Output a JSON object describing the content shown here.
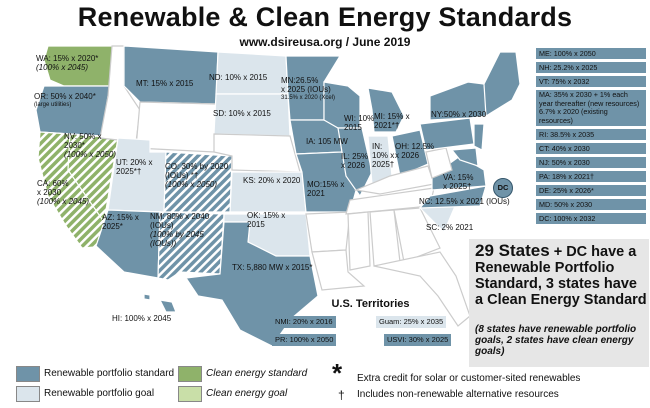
{
  "title": "Renewable & Clean Energy Standards",
  "subtitle": "www.dsireusa.org / June 2019",
  "colors": {
    "rps_standard": "#6f93a8",
    "rps_goal": "#dbe5ec",
    "clean_standard": "#8fb26a",
    "clean_goal": "#c9dfa8",
    "no_policy": "#ffffff"
  },
  "states": {
    "WA": {
      "line1": "WA: 15% x 2020*",
      "line2": "(100% x 2045)"
    },
    "OR": {
      "line1": "OR: 50% x 2040*",
      "line2": "(large utilities)"
    },
    "MT": {
      "line1": "MT: 15% x 2015"
    },
    "ND": {
      "line1": "ND: 10% x 2015"
    },
    "SD": {
      "line1": "SD: 10% x 2015"
    },
    "MN": {
      "line1": "MN:26.5%",
      "line2": "x 2025 (IOUs)",
      "line3": "31.5% x 2020 (Xcel)"
    },
    "WI": {
      "line1": "WI: 10%",
      "line2": "2015"
    },
    "MI": {
      "line1": "MI: 15% x",
      "line2": "2021*†"
    },
    "NY": {
      "line1": "NY:50% x 2030"
    },
    "IA": {
      "line1": "IA: 105 MW"
    },
    "IL": {
      "line1": "IL: 25%",
      "line2": "x 2026"
    },
    "IN": {
      "line1": "IN:",
      "line2": "10% x",
      "line3": "2025†"
    },
    "OH": {
      "line1": "OH: 12.5%",
      "line2": "x 2026"
    },
    "NV": {
      "line1": "NV: 50% x",
      "line2": "2030*",
      "line3": "(100% x 2050)"
    },
    "UT": {
      "line1": "UT: 20% x",
      "line2": "2025*†"
    },
    "CO": {
      "line1": "CO: 30% by 2020",
      "line2": "(IOUs) *†",
      "line3": "(100% x 2050)"
    },
    "KS": {
      "line1": "KS: 20% x 2020"
    },
    "MO": {
      "line1": "MO:15% x",
      "line2": "2021"
    },
    "VA": {
      "line1": "VA: 15%",
      "line2": "x 2025†"
    },
    "CA": {
      "line1": "CA: 60%",
      "line2": "x 2030",
      "line3": "(100% x 2045)"
    },
    "AZ": {
      "line1": "AZ: 15% x",
      "line2": "2025*"
    },
    "NM": {
      "line1": "NM: 80% x 2040",
      "line2": "(IOUs)",
      "line3": "(100% by 2045",
      "line4": "(IOUs))"
    },
    "OK": {
      "line1": "OK: 15% x",
      "line2": "2015"
    },
    "TX": {
      "line1": "TX: 5,880 MW x 2015*"
    },
    "NC": {
      "line1": "NC: 12.5% x 2021 (IOUs)"
    },
    "SC": {
      "line1": "SC: 2% 2021"
    },
    "HI": {
      "line1": "HI: 100% x 2045"
    },
    "DC": {
      "line1": "DC"
    }
  },
  "northeast_panel": [
    "ME: 100% x 2050",
    "NH: 25.2% x 2025",
    "VT: 75% x 2032",
    "MA: 35% x 2030 + 1% each year thereafter (new resources) 6.7% x 2020 (existing resources)",
    "RI: 38.5% x 2035",
    "CT: 40% x 2030",
    "NJ: 50% x 2030",
    "PA: 18% x 2021†",
    "DE: 25% x 2026*",
    "MD: 50% x 2030",
    "DC: 100% x 2032"
  ],
  "summary": {
    "main_big": "29 States",
    "main_rest": " + DC have a Renewable Portfolio Standard, 3 states have a Clean Energy Standard",
    "note": "(8 states have renewable portfolio goals, 2 states have clean energy goals)"
  },
  "territories": {
    "heading": "U.S. Territories",
    "nmi": "NMI: 20% x 2016",
    "guam": "Guam: 25% x 2035",
    "pr": "PR: 100% x 2050",
    "usvi": "USVI: 30% x 2025"
  },
  "legend": {
    "rps_standard": "Renewable portfolio standard",
    "rps_goal": "Renewable portfolio goal",
    "clean_standard": "Clean energy standard",
    "clean_goal": "Clean energy goal"
  },
  "notes": {
    "asterisk_symbol": "*",
    "asterisk_text": "Extra credit for solar or customer-sited renewables",
    "dagger_symbol": "†",
    "dagger_text": "Includes non-renewable alternative resources"
  }
}
